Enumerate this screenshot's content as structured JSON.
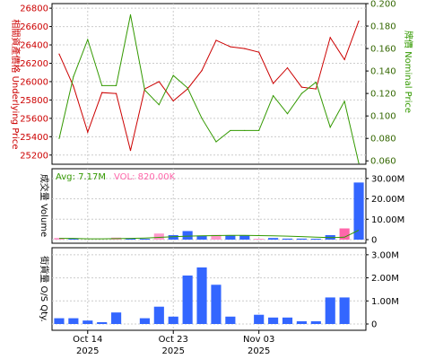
{
  "chart_data": [
    {
      "type": "line",
      "ylabel_left": "相關資產價格 Underlying Price",
      "ylabel_right": "牌價 Nominal Price",
      "left_color": "#cc0000",
      "right_color": "#339900",
      "ylim_left": [
        25100,
        26850
      ],
      "ylim_right": [
        0.057,
        0.2
      ],
      "left_ticks": [
        "25200",
        "25400",
        "25600",
        "25800",
        "26000",
        "26200",
        "26400",
        "26600",
        "26800"
      ],
      "right_ticks": [
        "0.060",
        "0.080",
        "0.100",
        "0.120",
        "0.140",
        "0.160",
        "0.180",
        "0.200"
      ],
      "series": [
        {
          "axis": "left",
          "values": [
            26300,
            25950,
            25450,
            25880,
            25870,
            25250,
            25920,
            26000,
            25790,
            25920,
            26120,
            26450,
            26380,
            26360,
            26320,
            25980,
            26150,
            25940,
            25920,
            26480,
            26240,
            26660
          ]
        },
        {
          "axis": "right",
          "values": [
            0.08,
            0.135,
            0.168,
            0.127,
            0.127,
            0.19,
            0.123,
            0.11,
            0.136,
            0.125,
            0.098,
            0.077,
            0.087,
            0.087,
            0.087,
            0.118,
            0.102,
            0.12,
            0.13,
            0.09,
            0.113,
            0.058
          ]
        }
      ],
      "grid": true
    },
    {
      "type": "bar",
      "ylabel": "成交量 Volume",
      "avg_label": "Avg: 7.17M",
      "vol_label": "VOL: 820.00K",
      "avg_color": "#339900",
      "vol_color": "#ff66aa",
      "ylim": [
        0,
        33000000
      ],
      "ticks": [
        "0",
        "10.00M",
        "20.00M",
        "30.00M"
      ],
      "values": [
        800000,
        300000,
        0,
        0,
        1000000,
        300000,
        400000,
        3000000,
        2200000,
        4200000,
        2000000,
        2300000,
        2000000,
        2200000,
        300000,
        800000,
        500000,
        500000,
        200000,
        2200000,
        5500000,
        28000000
      ],
      "colors": [
        "#ff99cc",
        "#3366ff",
        "#3366ff",
        "#3366ff",
        "#ff99cc",
        "#3366ff",
        "#3366ff",
        "#ff99cc",
        "#3366ff",
        "#3366ff",
        "#3366ff",
        "#ff99cc",
        "#3366ff",
        "#3366ff",
        "#ff99cc",
        "#3366ff",
        "#3366ff",
        "#3366ff",
        "#3366ff",
        "#3366ff",
        "#ff66aa",
        "#3366ff"
      ],
      "avg_line": [
        600000,
        600000,
        400000,
        400000,
        500000,
        600000,
        800000,
        1100000,
        1400000,
        1700000,
        1900000,
        2000000,
        2100000,
        2100000,
        2000000,
        1900000,
        1700000,
        1500000,
        1200000,
        1000000,
        1200000,
        4600000
      ]
    },
    {
      "type": "bar",
      "ylabel": "街貨量 O/S Qty.",
      "ylim": [
        0,
        3150000
      ],
      "ticks": [
        "0",
        "1.00M",
        "2.00M",
        "3.00M"
      ],
      "values": [
        250000,
        250000,
        150000,
        80000,
        500000,
        0,
        250000,
        750000,
        320000,
        2100000,
        2450000,
        1700000,
        320000,
        0,
        400000,
        280000,
        280000,
        120000,
        120000,
        1150000,
        1150000,
        0
      ],
      "bar_color": "#3366ff"
    }
  ],
  "x_axis": {
    "labels": [
      {
        "index": 2,
        "line1": "Oct 14",
        "line2": "2025"
      },
      {
        "index": 8,
        "line1": "Oct 23",
        "line2": "2025"
      },
      {
        "index": 14,
        "line1": "Nov 03",
        "line2": "2025"
      }
    ]
  }
}
